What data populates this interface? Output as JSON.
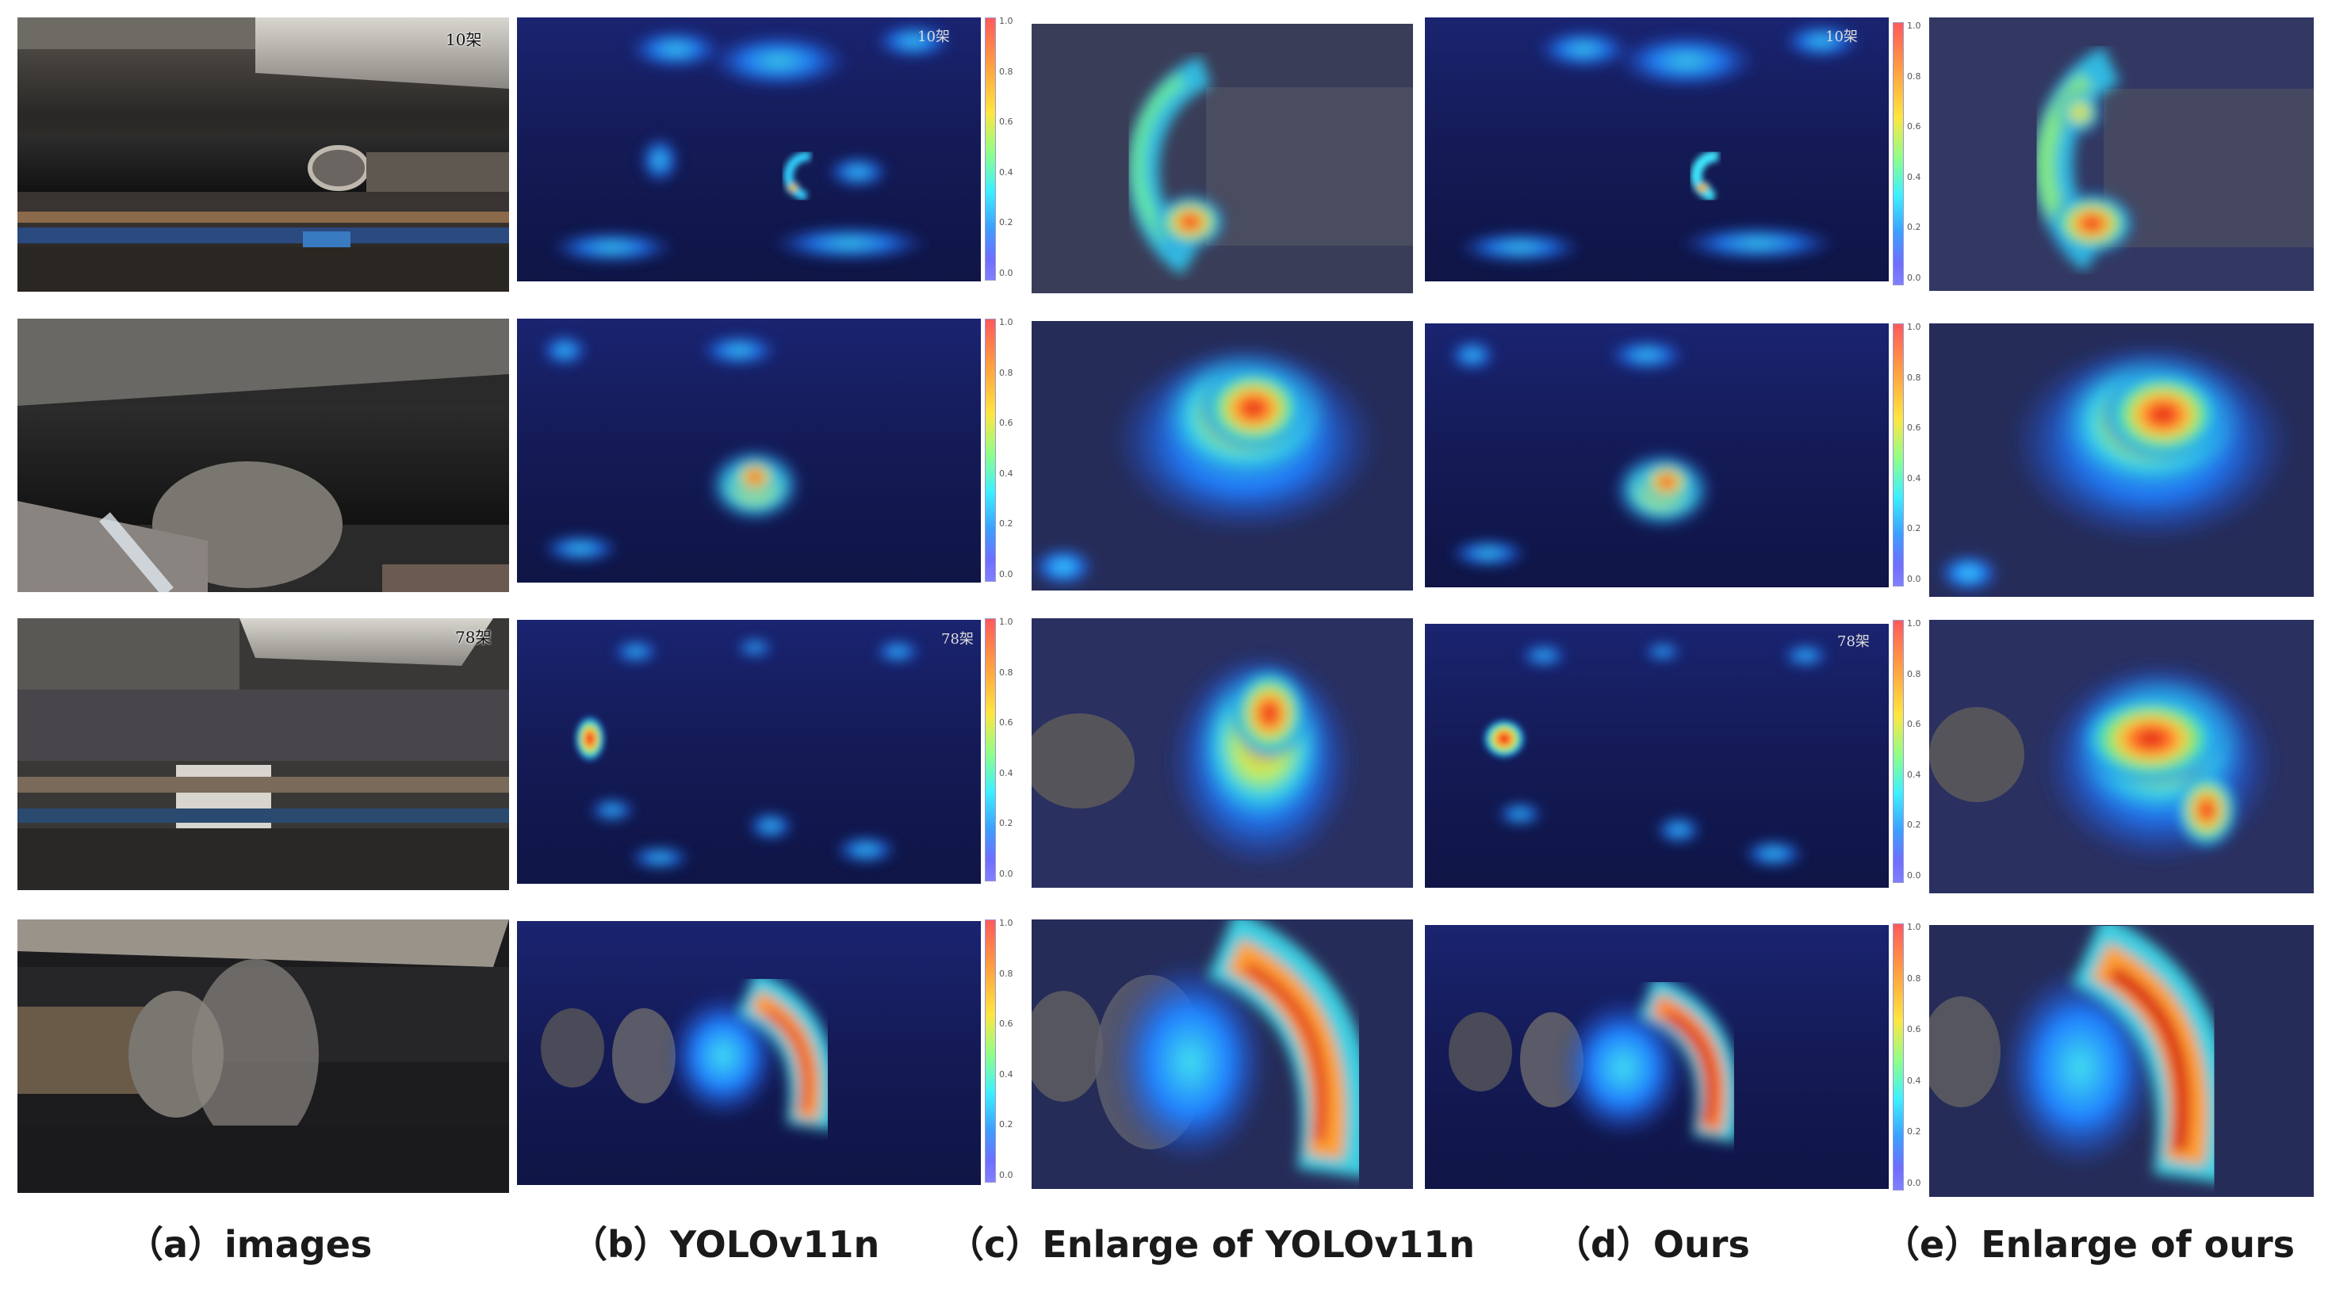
{
  "stamps": {
    "r1": "10架",
    "r3": "78架"
  },
  "colorbar_ticks": [
    "1.0",
    "0.8",
    "0.6",
    "0.4",
    "0.2",
    "0.0"
  ],
  "captions": {
    "a": "（a）images",
    "b": "（b）YOLOv11n",
    "c": "（c）Enlarge of YOLOv11n",
    "d": "（d）Ours",
    "e": "（e）Enlarge of ours"
  }
}
